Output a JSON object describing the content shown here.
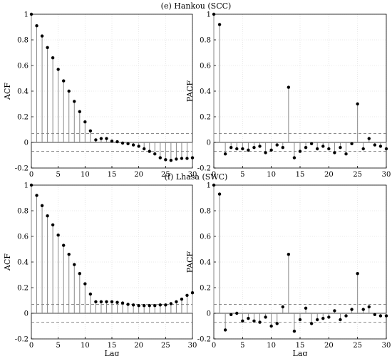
{
  "figure": {
    "panel_titles": [
      "(e) Hankou (SCC)",
      "(f) Lhasa (SWC)"
    ]
  },
  "chart_data": [
    {
      "type": "stem",
      "title": "(e) Hankou (SCC)",
      "xlabel": "",
      "ylabel": "ACF",
      "xlim": [
        0,
        30
      ],
      "ylim": [
        -0.2,
        1
      ],
      "xticks": [
        0,
        5,
        10,
        15,
        20,
        25,
        30
      ],
      "yticks": [
        -0.2,
        0,
        0.2,
        0.4,
        0.6,
        0.8,
        1
      ],
      "confidence_bounds": [
        0.07,
        -0.07
      ],
      "grid": true,
      "x": [
        0,
        1,
        2,
        3,
        4,
        5,
        6,
        7,
        8,
        9,
        10,
        11,
        12,
        13,
        14,
        15,
        16,
        17,
        18,
        19,
        20,
        21,
        22,
        23,
        24,
        25,
        26,
        27,
        28,
        29,
        30
      ],
      "values": [
        1.0,
        0.91,
        0.83,
        0.74,
        0.66,
        0.57,
        0.48,
        0.4,
        0.32,
        0.24,
        0.16,
        0.09,
        0.02,
        0.03,
        0.03,
        0.01,
        0.005,
        -0.005,
        -0.01,
        -0.02,
        -0.03,
        -0.05,
        -0.07,
        -0.09,
        -0.12,
        -0.135,
        -0.14,
        -0.13,
        -0.125,
        -0.125,
        -0.12
      ]
    },
    {
      "type": "stem",
      "title": "",
      "xlabel": "",
      "ylabel": "PACF",
      "xlim": [
        0,
        30
      ],
      "ylim": [
        -0.2,
        1
      ],
      "xticks": [
        0,
        5,
        10,
        15,
        20,
        25,
        30
      ],
      "yticks": [
        -0.2,
        0,
        0.2,
        0.4,
        0.6,
        0.8,
        1
      ],
      "confidence_bounds": [
        0.07,
        -0.07
      ],
      "grid": true,
      "x": [
        0,
        1,
        2,
        3,
        4,
        5,
        6,
        7,
        8,
        9,
        10,
        11,
        12,
        13,
        14,
        15,
        16,
        17,
        18,
        19,
        20,
        21,
        22,
        23,
        24,
        25,
        26,
        27,
        28,
        29,
        30
      ],
      "values": [
        1.0,
        0.92,
        -0.09,
        -0.04,
        -0.05,
        -0.05,
        -0.06,
        -0.04,
        -0.03,
        -0.08,
        -0.06,
        -0.02,
        -0.04,
        0.43,
        -0.12,
        -0.07,
        -0.04,
        -0.01,
        -0.05,
        -0.03,
        -0.05,
        -0.08,
        -0.04,
        -0.09,
        -0.01,
        0.3,
        -0.05,
        0.03,
        -0.02,
        -0.03,
        -0.05
      ]
    },
    {
      "type": "stem",
      "title": "(f) Lhasa (SWC)",
      "xlabel": "Lag",
      "ylabel": "ACF",
      "xlim": [
        0,
        30
      ],
      "ylim": [
        -0.2,
        1
      ],
      "xticks": [
        0,
        5,
        10,
        15,
        20,
        25,
        30
      ],
      "yticks": [
        -0.2,
        0,
        0.2,
        0.4,
        0.6,
        0.8,
        1
      ],
      "confidence_bounds": [
        0.07,
        -0.07
      ],
      "grid": true,
      "x": [
        0,
        1,
        2,
        3,
        4,
        5,
        6,
        7,
        8,
        9,
        10,
        11,
        12,
        13,
        14,
        15,
        16,
        17,
        18,
        19,
        20,
        21,
        22,
        23,
        24,
        25,
        26,
        27,
        28,
        29,
        30
      ],
      "values": [
        1.0,
        0.92,
        0.84,
        0.76,
        0.69,
        0.61,
        0.53,
        0.46,
        0.38,
        0.31,
        0.23,
        0.15,
        0.09,
        0.09,
        0.09,
        0.09,
        0.085,
        0.08,
        0.07,
        0.065,
        0.06,
        0.06,
        0.06,
        0.06,
        0.065,
        0.065,
        0.075,
        0.09,
        0.11,
        0.14,
        0.16
      ]
    },
    {
      "type": "stem",
      "title": "",
      "xlabel": "Lag",
      "ylabel": "PACF",
      "xlim": [
        0,
        30
      ],
      "ylim": [
        -0.2,
        1
      ],
      "xticks": [
        0,
        5,
        10,
        15,
        20,
        25,
        30
      ],
      "yticks": [
        -0.2,
        0,
        0.2,
        0.4,
        0.6,
        0.8,
        1
      ],
      "confidence_bounds": [
        0.07,
        -0.07
      ],
      "grid": true,
      "x": [
        0,
        1,
        2,
        3,
        4,
        5,
        6,
        7,
        8,
        9,
        10,
        11,
        12,
        13,
        14,
        15,
        16,
        17,
        18,
        19,
        20,
        21,
        22,
        23,
        24,
        25,
        26,
        27,
        28,
        29,
        30
      ],
      "values": [
        1.0,
        0.93,
        -0.13,
        -0.01,
        0.0,
        -0.06,
        -0.04,
        -0.06,
        -0.07,
        -0.03,
        -0.1,
        -0.08,
        0.05,
        0.46,
        -0.14,
        -0.05,
        0.04,
        -0.08,
        -0.05,
        -0.04,
        -0.03,
        0.02,
        -0.05,
        -0.02,
        0.03,
        0.31,
        0.03,
        0.05,
        -0.01,
        -0.02,
        -0.02
      ]
    }
  ]
}
